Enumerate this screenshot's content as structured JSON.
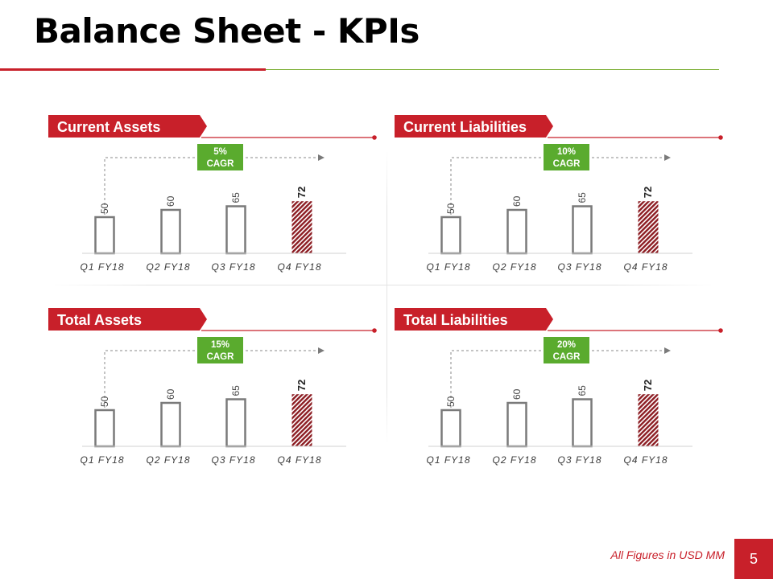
{
  "page": {
    "title": "Balance Sheet - KPIs",
    "footer_note": "All Figures in USD MM",
    "page_number": "5"
  },
  "colors": {
    "brand_red": "#c8202a",
    "accent_green": "#5aab2e",
    "divider_green": "#7fb13a",
    "bar_outline": "#7a7a7a",
    "hatch_dark": "#8c1c22"
  },
  "chart_data": [
    {
      "type": "bar",
      "title": "Current Assets",
      "categories": [
        "Q1 FY18",
        "Q2 FY18",
        "Q3 FY18",
        "Q4 FY18"
      ],
      "values": [
        50,
        60,
        65,
        72
      ],
      "badge": {
        "percent": "5%",
        "label": "CAGR"
      },
      "highlight_last": true
    },
    {
      "type": "bar",
      "title": "Current Liabilities",
      "categories": [
        "Q1 FY18",
        "Q2 FY18",
        "Q3 FY18",
        "Q4 FY18"
      ],
      "values": [
        50,
        60,
        65,
        72
      ],
      "badge": {
        "percent": "10%",
        "label": "CAGR"
      },
      "highlight_last": true
    },
    {
      "type": "bar",
      "title": "Total Assets",
      "categories": [
        "Q1 FY18",
        "Q2 FY18",
        "Q3 FY18",
        "Q4 FY18"
      ],
      "values": [
        50,
        60,
        65,
        72
      ],
      "badge": {
        "percent": "15%",
        "label": "CAGR"
      },
      "highlight_last": true
    },
    {
      "type": "bar",
      "title": "Total Liabilities",
      "categories": [
        "Q1 FY18",
        "Q2 FY18",
        "Q3 FY18",
        "Q4 FY18"
      ],
      "values": [
        50,
        60,
        65,
        72
      ],
      "badge": {
        "percent": "20%",
        "label": "CAGR"
      },
      "highlight_last": true
    }
  ]
}
